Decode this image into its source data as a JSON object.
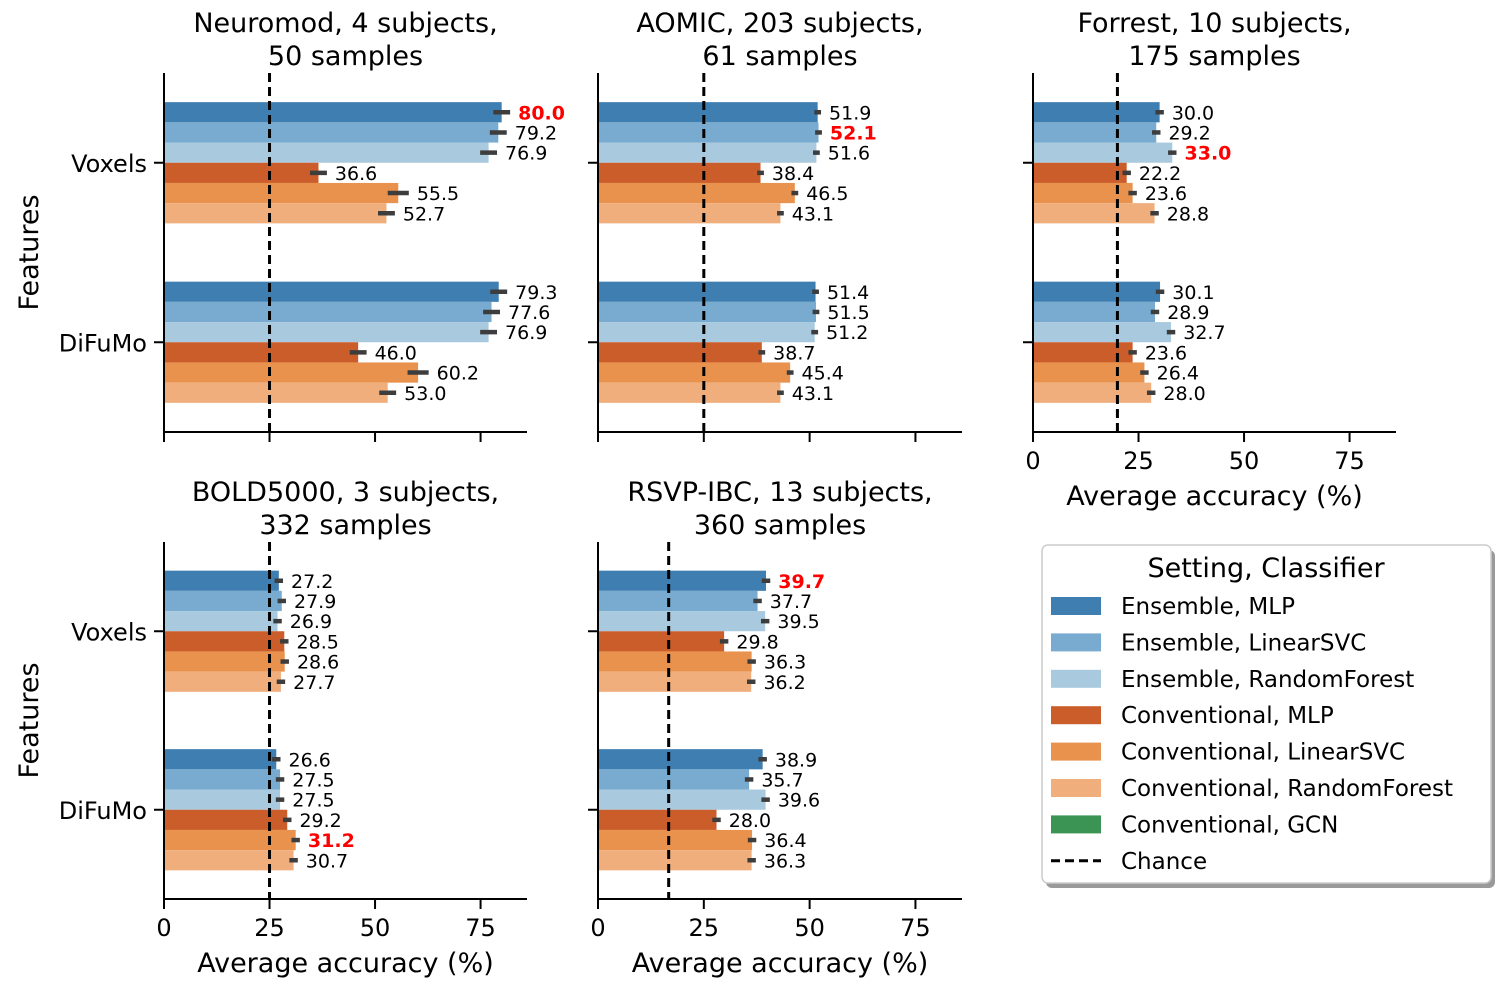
{
  "colors": {
    "Ensemble, MLP": "#3e7eb1",
    "Ensemble, LinearSVC": "#78abcf",
    "Ensemble, RandomForest": "#a8c9de",
    "Conventional, MLP": "#cb5d2a",
    "Conventional, LinearSVC": "#e8924e",
    "Conventional, RandomForest": "#efae7c",
    "Conventional, GCN": "#3b9454",
    "Chance": "#000000",
    "best_label": "#ff0000",
    "error_bar": "#3d3d3d"
  },
  "chart_data": [
    {
      "type": "bar",
      "orientation": "horizontal",
      "title_line1": "Neuromod, 4 subjects,",
      "title_line2": "50 samples",
      "xlabel": "",
      "ylabel": "Features",
      "xlim": [
        0,
        86
      ],
      "xticks": [],
      "categories": [
        "Voxels",
        "DiFuMo"
      ],
      "chance": 25,
      "series": [
        {
          "name": "Ensemble, MLP",
          "values": [
            80.0,
            79.3
          ],
          "errors": [
            2.0,
            2.0
          ]
        },
        {
          "name": "Ensemble, LinearSVC",
          "values": [
            79.2,
            77.6
          ],
          "errors": [
            2.0,
            2.0
          ]
        },
        {
          "name": "Ensemble, RandomForest",
          "values": [
            76.9,
            76.9
          ],
          "errors": [
            2.0,
            2.0
          ]
        },
        {
          "name": "Conventional, MLP",
          "values": [
            36.6,
            46.0
          ],
          "errors": [
            2.0,
            2.0
          ]
        },
        {
          "name": "Conventional, LinearSVC",
          "values": [
            55.5,
            60.2
          ],
          "errors": [
            2.5,
            2.5
          ]
        },
        {
          "name": "Conventional, RandomForest",
          "values": [
            52.7,
            53.0
          ],
          "errors": [
            2.0,
            2.0
          ]
        }
      ],
      "labels": [
        [
          "80.0",
          "79.2",
          "76.9",
          "36.6",
          "55.5",
          "52.7"
        ],
        [
          "79.3",
          "77.6",
          "76.9",
          "46.0",
          "60.2",
          "53.0"
        ]
      ],
      "best": [
        0,
        0
      ]
    },
    {
      "type": "bar",
      "orientation": "horizontal",
      "title_line1": "AOMIC, 203 subjects,",
      "title_line2": "61 samples",
      "xlabel": "",
      "ylabel": "",
      "xlim": [
        0,
        86
      ],
      "xticks": [],
      "categories": [
        "Voxels",
        "DiFuMo"
      ],
      "chance": 25,
      "series": [
        {
          "name": "Ensemble, MLP",
          "values": [
            51.9,
            51.4
          ],
          "errors": [
            0.8,
            0.8
          ]
        },
        {
          "name": "Ensemble, LinearSVC",
          "values": [
            52.1,
            51.5
          ],
          "errors": [
            0.8,
            0.8
          ]
        },
        {
          "name": "Ensemble, RandomForest",
          "values": [
            51.6,
            51.2
          ],
          "errors": [
            0.8,
            0.8
          ]
        },
        {
          "name": "Conventional, MLP",
          "values": [
            38.4,
            38.7
          ],
          "errors": [
            0.8,
            0.8
          ]
        },
        {
          "name": "Conventional, LinearSVC",
          "values": [
            46.5,
            45.4
          ],
          "errors": [
            0.8,
            0.8
          ]
        },
        {
          "name": "Conventional, RandomForest",
          "values": [
            43.1,
            43.1
          ],
          "errors": [
            0.8,
            0.8
          ]
        }
      ],
      "labels": [
        [
          "51.9",
          "52.1",
          "51.6",
          "38.4",
          "46.5",
          "43.1"
        ],
        [
          "51.4",
          "51.5",
          "51.2",
          "38.7",
          "45.4",
          "43.1"
        ]
      ],
      "best": [
        0,
        1
      ]
    },
    {
      "type": "bar",
      "orientation": "horizontal",
      "title_line1": "Forrest, 10 subjects,",
      "title_line2": "175 samples",
      "xlabel": "Average accuracy (%)",
      "ylabel": "",
      "xlim": [
        0,
        86
      ],
      "xticks": [
        "0",
        "25",
        "50",
        "75"
      ],
      "categories": [
        "Voxels",
        "DiFuMo"
      ],
      "chance": 20,
      "series": [
        {
          "name": "Ensemble, MLP",
          "values": [
            30.0,
            30.1
          ],
          "errors": [
            1.0,
            1.0
          ]
        },
        {
          "name": "Ensemble, LinearSVC",
          "values": [
            29.2,
            28.9
          ],
          "errors": [
            1.0,
            1.0
          ]
        },
        {
          "name": "Ensemble, RandomForest",
          "values": [
            33.0,
            32.7
          ],
          "errors": [
            1.0,
            1.0
          ]
        },
        {
          "name": "Conventional, MLP",
          "values": [
            22.2,
            23.6
          ],
          "errors": [
            1.0,
            1.0
          ]
        },
        {
          "name": "Conventional, LinearSVC",
          "values": [
            23.6,
            26.4
          ],
          "errors": [
            1.0,
            1.0
          ]
        },
        {
          "name": "Conventional, RandomForest",
          "values": [
            28.8,
            28.0
          ],
          "errors": [
            1.0,
            1.0
          ]
        }
      ],
      "labels": [
        [
          "30.0",
          "29.2",
          "33.0",
          "22.2",
          "23.6",
          "28.8"
        ],
        [
          "30.1",
          "28.9",
          "32.7",
          "23.6",
          "26.4",
          "28.0"
        ]
      ],
      "best": [
        0,
        2
      ]
    },
    {
      "type": "bar",
      "orientation": "horizontal",
      "title_line1": "BOLD5000, 3 subjects,",
      "title_line2": "332 samples",
      "xlabel": "Average accuracy (%)",
      "ylabel": "Features",
      "xlim": [
        0,
        86
      ],
      "xticks": [
        "0",
        "25",
        "50",
        "75"
      ],
      "categories": [
        "Voxels",
        "DiFuMo"
      ],
      "chance": 25,
      "series": [
        {
          "name": "Ensemble, MLP",
          "values": [
            27.2,
            26.6
          ],
          "errors": [
            1.0,
            1.0
          ]
        },
        {
          "name": "Ensemble, LinearSVC",
          "values": [
            27.9,
            27.5
          ],
          "errors": [
            1.0,
            1.0
          ]
        },
        {
          "name": "Ensemble, RandomForest",
          "values": [
            26.9,
            27.5
          ],
          "errors": [
            1.0,
            1.0
          ]
        },
        {
          "name": "Conventional, MLP",
          "values": [
            28.5,
            29.2
          ],
          "errors": [
            1.0,
            1.0
          ]
        },
        {
          "name": "Conventional, LinearSVC",
          "values": [
            28.6,
            31.2
          ],
          "errors": [
            1.0,
            1.0
          ]
        },
        {
          "name": "Conventional, RandomForest",
          "values": [
            27.7,
            30.7
          ],
          "errors": [
            1.0,
            1.0
          ]
        }
      ],
      "labels": [
        [
          "27.2",
          "27.9",
          "26.9",
          "28.5",
          "28.6",
          "27.7"
        ],
        [
          "26.6",
          "27.5",
          "27.5",
          "29.2",
          "31.2",
          "30.7"
        ]
      ],
      "best": [
        1,
        4
      ]
    },
    {
      "type": "bar",
      "orientation": "horizontal",
      "title_line1": "RSVP-IBC, 13 subjects,",
      "title_line2": "360 samples",
      "xlabel": "Average accuracy (%)",
      "ylabel": "",
      "xlim": [
        0,
        86
      ],
      "xticks": [
        "0",
        "25",
        "50",
        "75"
      ],
      "categories": [
        "Voxels",
        "DiFuMo"
      ],
      "chance": 16.7,
      "series": [
        {
          "name": "Ensemble, MLP",
          "values": [
            39.7,
            38.9
          ],
          "errors": [
            1.0,
            1.0
          ]
        },
        {
          "name": "Ensemble, LinearSVC",
          "values": [
            37.7,
            35.7
          ],
          "errors": [
            1.0,
            1.0
          ]
        },
        {
          "name": "Ensemble, RandomForest",
          "values": [
            39.5,
            39.6
          ],
          "errors": [
            1.0,
            1.0
          ]
        },
        {
          "name": "Conventional, MLP",
          "values": [
            29.8,
            28.0
          ],
          "errors": [
            1.0,
            1.0
          ]
        },
        {
          "name": "Conventional, LinearSVC",
          "values": [
            36.3,
            36.4
          ],
          "errors": [
            1.0,
            1.0
          ]
        },
        {
          "name": "Conventional, RandomForest",
          "values": [
            36.2,
            36.3
          ],
          "errors": [
            1.0,
            1.0
          ]
        }
      ],
      "labels": [
        [
          "39.7",
          "37.7",
          "39.5",
          "29.8",
          "36.3",
          "36.2"
        ],
        [
          "38.9",
          "35.7",
          "39.6",
          "28.0",
          "36.4",
          "36.3"
        ]
      ],
      "best": [
        0,
        0
      ]
    }
  ],
  "legend": {
    "title": "Setting, Classifier",
    "placement": "lower-right",
    "entries": [
      {
        "label": "Ensemble, MLP",
        "kind": "patch"
      },
      {
        "label": "Ensemble, LinearSVC",
        "kind": "patch"
      },
      {
        "label": "Ensemble, RandomForest",
        "kind": "patch"
      },
      {
        "label": "Conventional, MLP",
        "kind": "patch"
      },
      {
        "label": "Conventional, LinearSVC",
        "kind": "patch"
      },
      {
        "label": "Conventional, RandomForest",
        "kind": "patch"
      },
      {
        "label": "Conventional, GCN",
        "kind": "patch"
      },
      {
        "label": "Chance",
        "kind": "dashed"
      }
    ]
  }
}
